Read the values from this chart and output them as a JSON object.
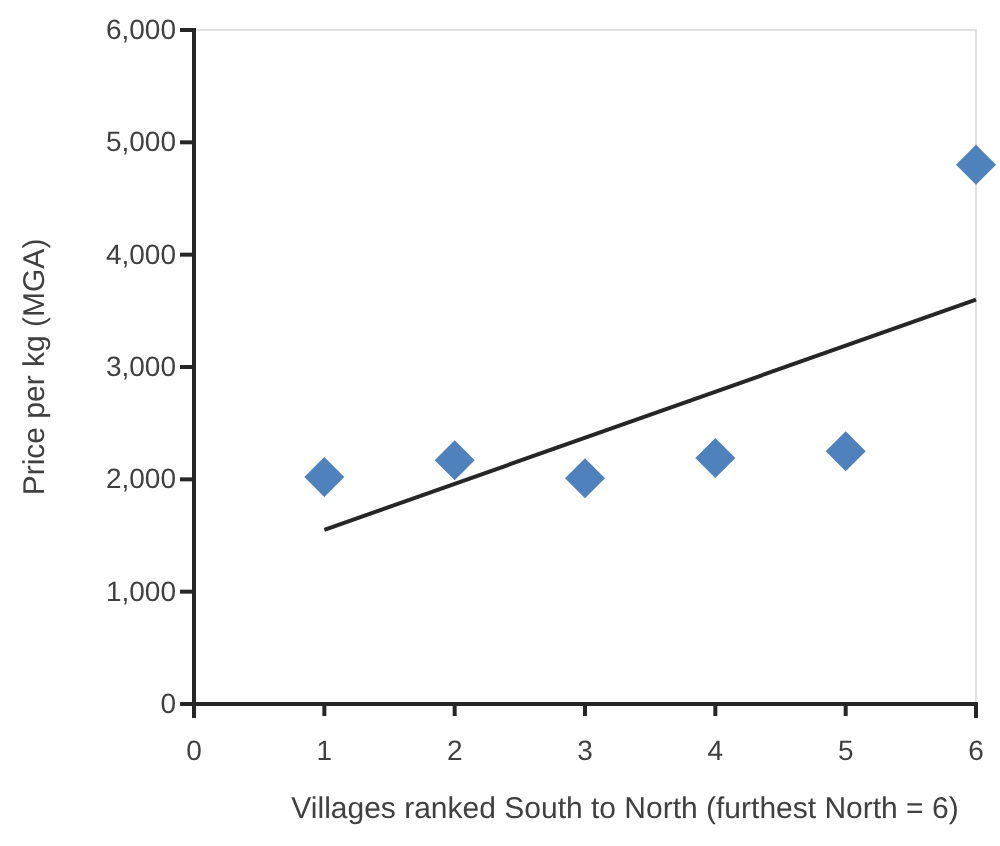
{
  "chart_data": {
    "type": "scatter",
    "xlabel": "Villages ranked South to North (furthest North = 6)",
    "ylabel": "Price per kg (MGA)",
    "xlim": [
      0,
      6
    ],
    "xticks": [
      0,
      1,
      2,
      3,
      4,
      5,
      6
    ],
    "ylim": [
      0,
      6000
    ],
    "yticks": [
      {
        "value": 0,
        "label": "0"
      },
      {
        "value": 1000,
        "label": "1,000"
      },
      {
        "value": 2000,
        "label": "2,000"
      },
      {
        "value": 3000,
        "label": "3,000"
      },
      {
        "value": 4000,
        "label": "4,000"
      },
      {
        "value": 5000,
        "label": "5,000"
      },
      {
        "value": 6000,
        "label": "6,000"
      }
    ],
    "grid": false,
    "marker": "diamond",
    "series": [
      {
        "color": "#4f81bd",
        "x": [
          1,
          2,
          3,
          4,
          5,
          6
        ],
        "values": [
          2020,
          2170,
          2010,
          2190,
          2250,
          4800
        ]
      },
      {
        "type": "line",
        "color": "#262626",
        "x": [
          1,
          6
        ],
        "values": [
          1550,
          3600
        ],
        "marker": "none",
        "line_style": "solid"
      }
    ]
  }
}
